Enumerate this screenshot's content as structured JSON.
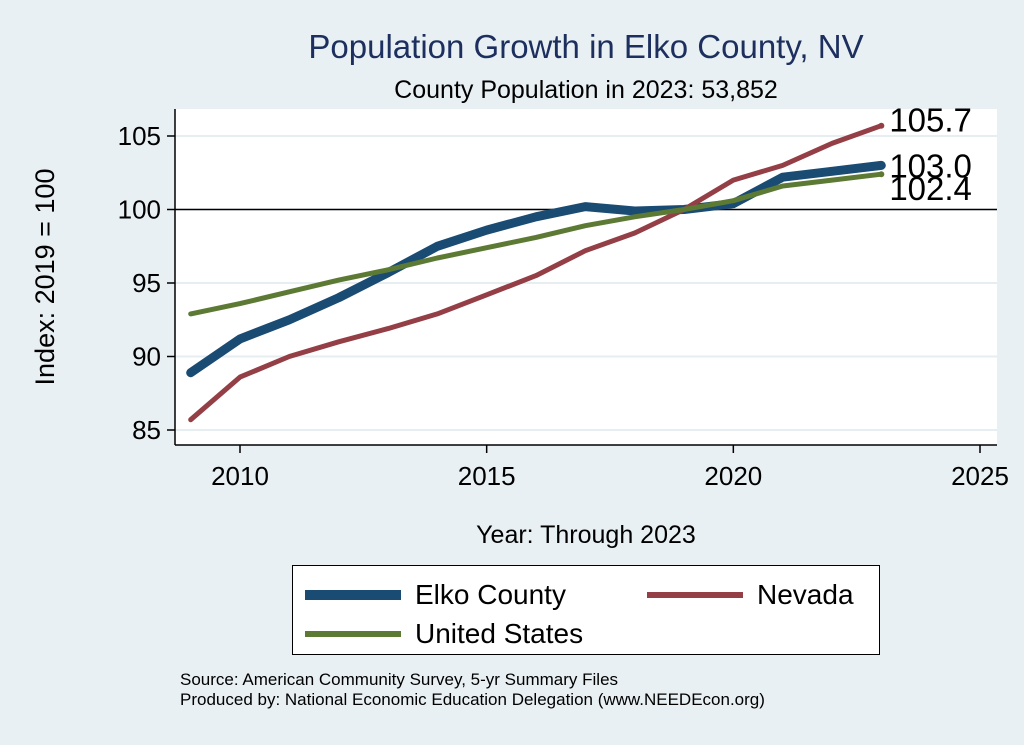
{
  "chart_data": {
    "type": "line",
    "title": "Population Growth in Elko County, NV",
    "subtitle": "County Population in 2023: 53,852",
    "xlabel": "Year: Through 2023",
    "ylabel": "Index: 2019 = 100",
    "xlim": [
      2009,
      2025
    ],
    "ylim": [
      84,
      108
    ],
    "xticks": [
      2010,
      2015,
      2020,
      2025
    ],
    "yticks": [
      85,
      90,
      95,
      100,
      105
    ],
    "reference_line": 100,
    "grid": true,
    "x": [
      2009,
      2010,
      2011,
      2012,
      2013,
      2014,
      2015,
      2016,
      2017,
      2018,
      2019,
      2020,
      2021,
      2022,
      2023
    ],
    "series": [
      {
        "name": "Elko  County",
        "color": "#1a4b73",
        "values": [
          88.9,
          91.2,
          92.5,
          94.0,
          95.7,
          97.5,
          98.6,
          99.5,
          100.2,
          99.9,
          100.0,
          100.4,
          102.2,
          102.6,
          103.0
        ],
        "end_label": "103.0"
      },
      {
        "name": "Nevada",
        "color": "#943e46",
        "values": [
          85.7,
          88.6,
          90.0,
          91.0,
          91.9,
          92.9,
          94.2,
          95.5,
          97.2,
          98.4,
          100.0,
          102.0,
          103.0,
          104.5,
          105.7
        ],
        "end_label": "105.7"
      },
      {
        "name": "United States",
        "color": "#5d7a35",
        "values": [
          92.9,
          93.6,
          94.4,
          95.2,
          95.9,
          96.7,
          97.4,
          98.1,
          98.9,
          99.5,
          100.0,
          100.6,
          101.6,
          102.0,
          102.4
        ],
        "end_label": "102.4"
      }
    ],
    "legend": {
      "placement": "bottom",
      "entries": [
        "Elko  County",
        "Nevada",
        "United States"
      ]
    }
  },
  "footer": {
    "source": "Source: American Community Survey, 5-yr Summary Files",
    "producer": "Produced by: National Economic Education Delegation (www.NEEDEcon.org)"
  }
}
